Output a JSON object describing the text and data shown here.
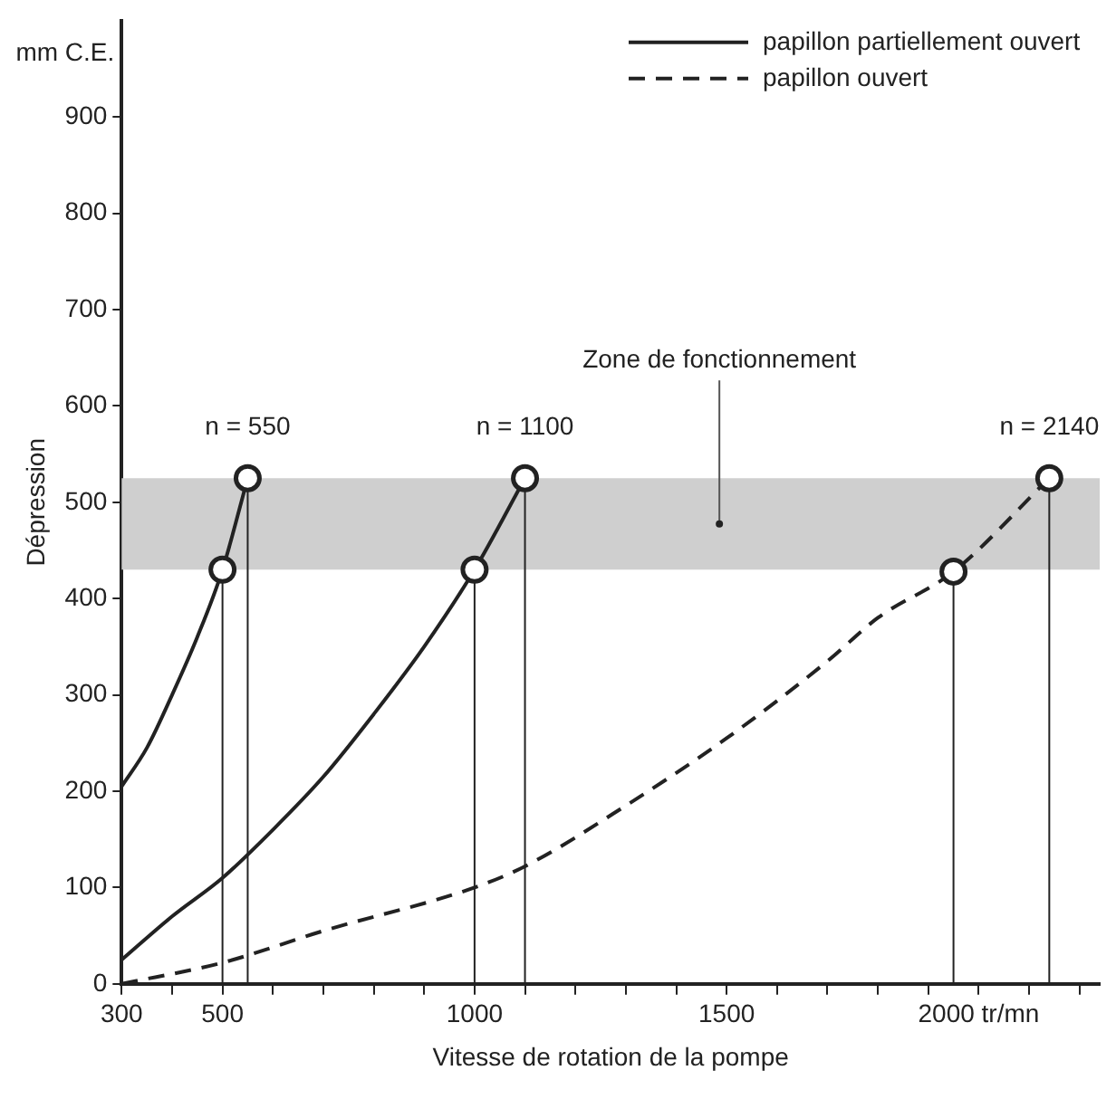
{
  "chart_data": {
    "type": "line",
    "xlabel": "Vitesse de rotation de la pompe",
    "ylabel": "Dépression",
    "xlim": [
      300,
      2240
    ],
    "ylim": [
      0,
      1000
    ],
    "xticks": [
      300,
      {
        "value": 400,
        "label": null
      },
      500,
      {
        "value": 600,
        "label": null
      },
      {
        "value": 700,
        "label": null
      },
      {
        "value": 800,
        "label": null
      },
      {
        "value": 900,
        "label": null
      },
      1000,
      {
        "value": 1100,
        "label": null
      },
      {
        "value": 1200,
        "label": null
      },
      {
        "value": 1300,
        "label": null
      },
      {
        "value": 1400,
        "label": null
      },
      1500,
      {
        "value": 1600,
        "label": null
      },
      {
        "value": 1700,
        "label": null
      },
      {
        "value": 1800,
        "label": null
      },
      {
        "value": 1900,
        "label": null
      },
      {
        "value": 2000,
        "label": "2000 tr/mn"
      },
      {
        "value": 2100,
        "label": null
      },
      {
        "value": 2200,
        "label": null
      }
    ],
    "yticks": [
      0,
      100,
      200,
      300,
      400,
      500,
      600,
      700,
      800,
      900
    ],
    "grid": false,
    "legend": "top right",
    "series": [
      {
        "name": "papillon partiellement ouvert",
        "color": "#222222",
        "line_style": "solid",
        "marker": "none",
        "x": [
          300,
          350,
          400,
          450,
          500,
          550
        ],
        "values": [
          205,
          245,
          300,
          360,
          430,
          525
        ]
      },
      {
        "color": "#222222",
        "line_style": "solid",
        "marker": "none",
        "x": [
          300,
          400,
          500,
          600,
          700,
          800,
          900,
          1000,
          1100
        ],
        "values": [
          25,
          70,
          110,
          160,
          215,
          280,
          350,
          430,
          525
        ]
      },
      {
        "name": "papillon ouvert",
        "color": "#222222",
        "line_style": "dashed",
        "marker": "none",
        "x": [
          300,
          500,
          700,
          1000,
          1100,
          1300,
          1500,
          1700,
          1800,
          1950,
          2140
        ],
        "values": [
          0,
          22,
          55,
          100,
          122,
          185,
          255,
          335,
          380,
          428,
          525
        ]
      },
      {
        "type": "lollipop",
        "color": "#222222",
        "marker": "circle",
        "x": [
          500,
          550,
          1000,
          1100,
          1950,
          2140
        ],
        "values": [
          430,
          525,
          430,
          525,
          428,
          525
        ]
      }
    ],
    "bands": [
      {
        "axis": "y",
        "from": 430,
        "to": 525,
        "label": "Zone de fonctionnement",
        "color": "#cfcfcf"
      }
    ],
    "annotations": [
      "mm C.E.",
      {
        "text": "n = 550",
        "x": 550,
        "y": 525
      },
      {
        "text": "n = 1100",
        "x": 1100,
        "y": 525
      },
      {
        "text": "n = 2140",
        "x": 2140,
        "y": 525
      }
    ]
  }
}
